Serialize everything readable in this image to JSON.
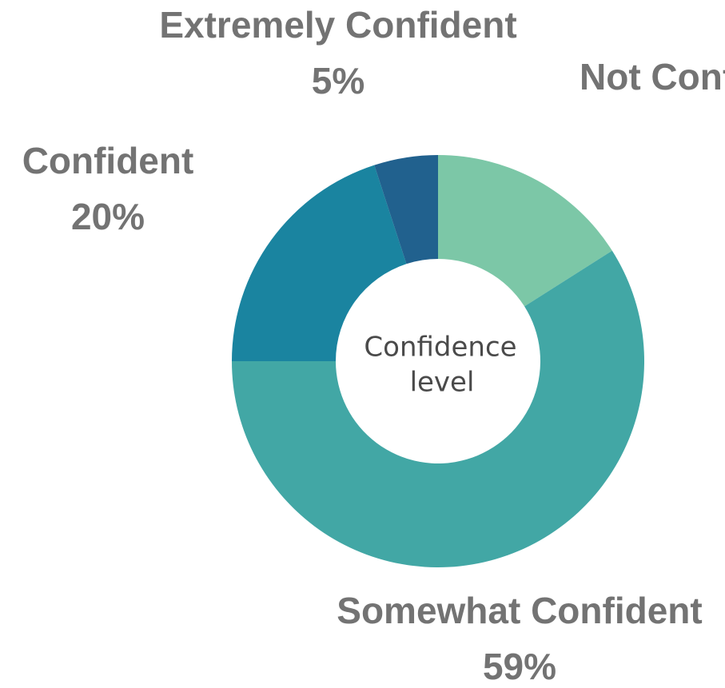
{
  "chart_data": {
    "type": "donut",
    "categories": [
      "Not Confident",
      "Somewhat Confident",
      "Confident",
      "Extremely Confident"
    ],
    "values": [
      16,
      59,
      20,
      5
    ],
    "value_labels": [
      null,
      "59%",
      "20%",
      "5%"
    ],
    "colors": [
      "#7cc7a7",
      "#42a7a5",
      "#1a84a0",
      "#21618e"
    ],
    "center_text": [
      "Confidence",
      "level"
    ]
  }
}
